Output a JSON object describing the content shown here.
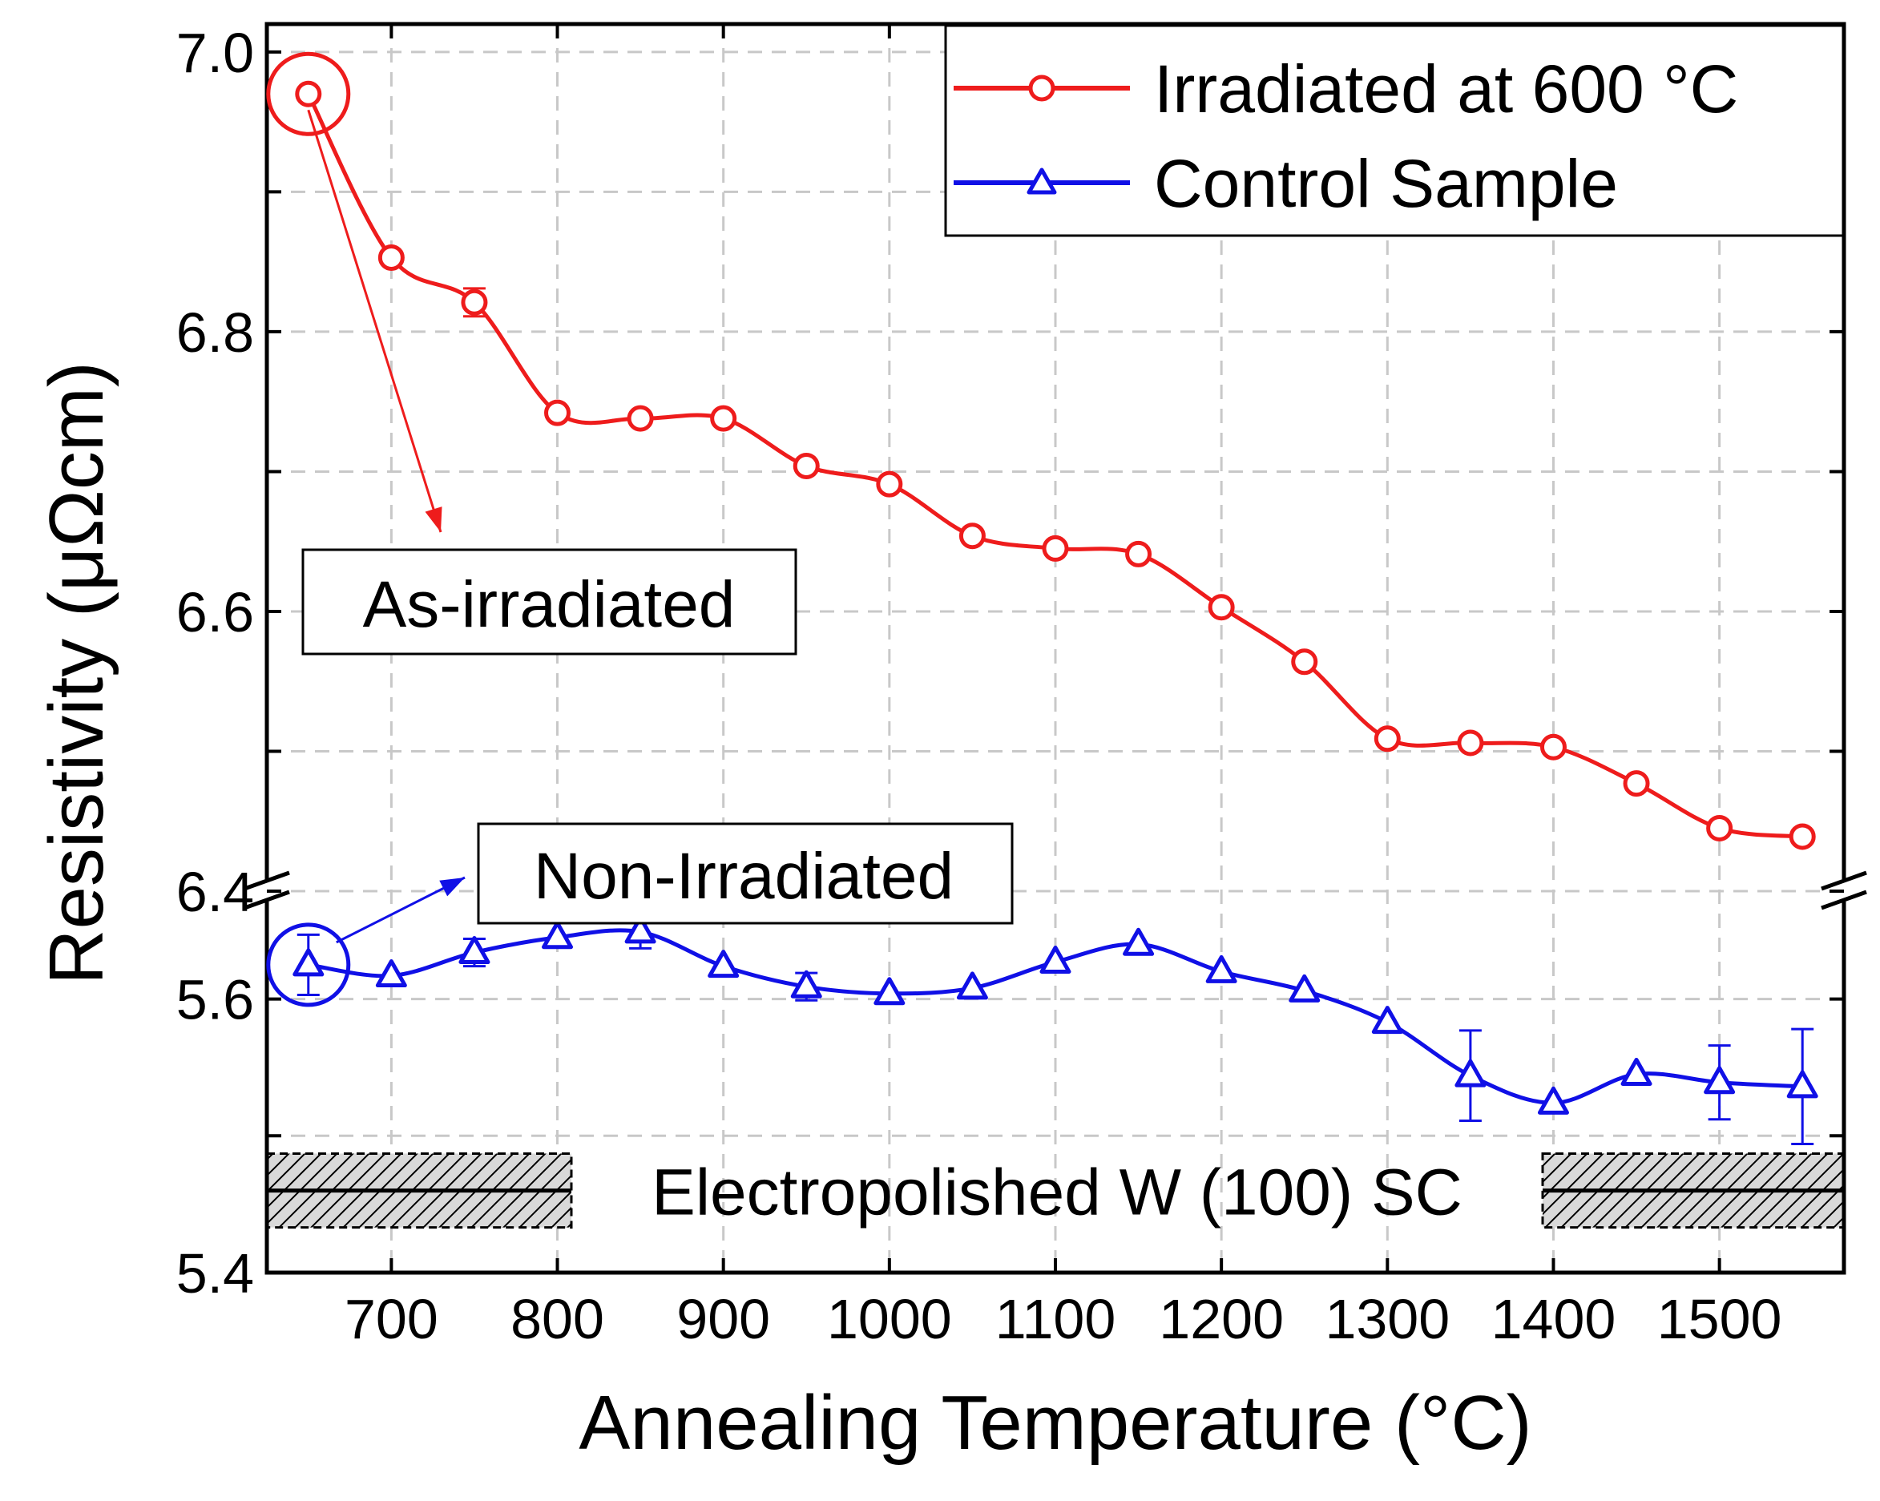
{
  "chart_data": {
    "type": "line",
    "xlabel": "Annealing Temperature (°C)",
    "ylabel": "Resistivity (μΩcm)",
    "xlim": [
      625,
      1575
    ],
    "x_ticks": [
      700,
      800,
      900,
      1000,
      1100,
      1200,
      1300,
      1400,
      1500
    ],
    "y_axis_break": {
      "lower_range": [
        5.4,
        5.68
      ],
      "upper_range": [
        6.4,
        7.02
      ]
    },
    "y_tick_labels": [
      "5.4",
      "5.6",
      "6.4",
      "6.6",
      "6.8",
      "7.0"
    ],
    "y_ticks_lower": [
      5.4,
      5.5,
      5.6
    ],
    "y_ticks_upper": [
      6.4,
      6.5,
      6.6,
      6.7,
      6.8,
      6.9,
      7.0
    ],
    "grid": true,
    "legend_position": "top-right",
    "series": [
      {
        "name": "Irradiated at 600 °C",
        "color": "#ee1c1c",
        "marker": "circle",
        "x": [
          650,
          700,
          750,
          800,
          850,
          900,
          950,
          1000,
          1050,
          1100,
          1150,
          1200,
          1250,
          1300,
          1350,
          1400,
          1450,
          1500,
          1550
        ],
        "values": [
          6.97,
          6.853,
          6.821,
          6.742,
          6.738,
          6.738,
          6.704,
          6.691,
          6.654,
          6.645,
          6.641,
          6.603,
          6.564,
          6.509,
          6.506,
          6.503,
          6.477,
          6.445,
          6.439
        ],
        "errors": [
          0,
          0,
          0.01,
          0,
          0,
          0,
          0,
          0,
          0,
          0,
          0,
          0,
          0,
          0,
          0,
          0,
          0,
          0,
          0
        ]
      },
      {
        "name": "Control Sample",
        "color": "#1010e6",
        "marker": "triangle",
        "x": [
          650,
          700,
          750,
          800,
          850,
          900,
          950,
          1000,
          1050,
          1100,
          1150,
          1200,
          1250,
          1300,
          1350,
          1400,
          1450,
          1500,
          1550
        ],
        "values": [
          5.625,
          5.617,
          5.634,
          5.645,
          5.649,
          5.624,
          5.609,
          5.604,
          5.608,
          5.627,
          5.64,
          5.62,
          5.606,
          5.583,
          5.544,
          5.524,
          5.545,
          5.539,
          5.536
        ],
        "errors": [
          0.022,
          0,
          0.01,
          0,
          0.012,
          0,
          0.01,
          0,
          0,
          0,
          0,
          0,
          0,
          0,
          0.033,
          0,
          0,
          0.027,
          0.042
        ]
      }
    ],
    "reference_band": {
      "label": "Electropolished W (100) SC",
      "value": 5.46,
      "range": [
        5.433,
        5.487
      ]
    },
    "annotations": [
      {
        "text": "As-irradiated",
        "series": "Irradiated at 600 °C",
        "x": 650
      },
      {
        "text": "Non-Irradiated",
        "series": "Control Sample",
        "x": 650
      }
    ]
  }
}
